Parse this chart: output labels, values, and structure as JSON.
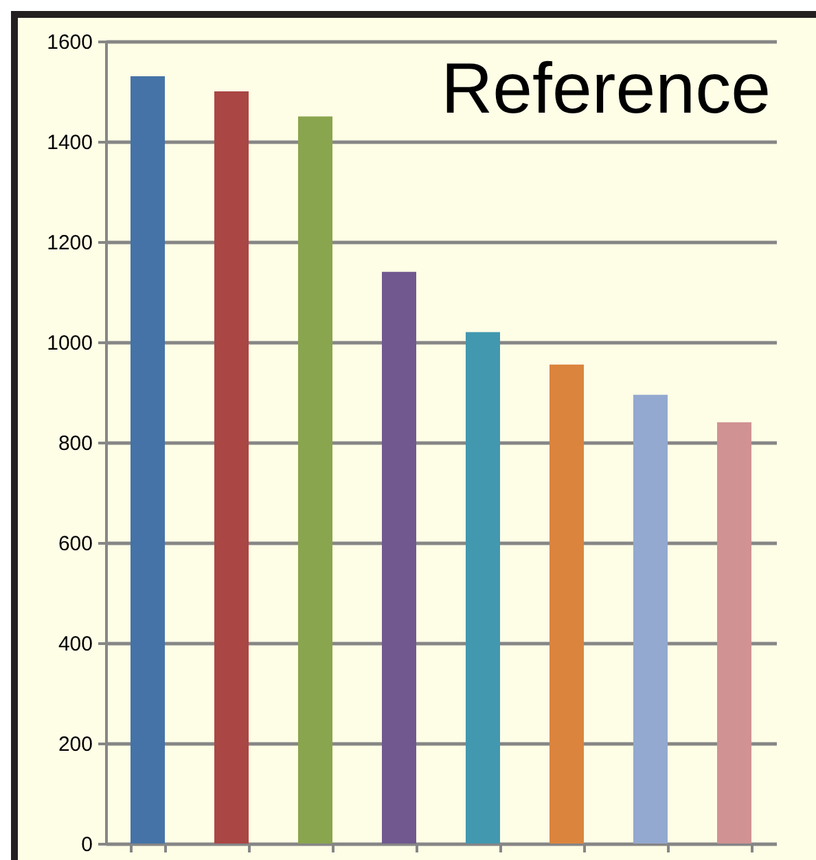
{
  "chart_data": {
    "type": "bar",
    "title": "Reference",
    "categories": [
      null,
      null,
      null,
      null,
      null,
      null,
      null,
      null
    ],
    "values": [
      1530,
      1500,
      1450,
      1140,
      1020,
      955,
      895,
      840
    ],
    "colors": [
      "#4573a7",
      "#aa4644",
      "#89a54e",
      "#71588f",
      "#4198af",
      "#db843d",
      "#93a9cf",
      "#d09293"
    ],
    "ylim": [
      0,
      1600
    ],
    "yticks": [
      0,
      200,
      400,
      600,
      800,
      1000,
      1200,
      1400,
      1600
    ],
    "grid": "y",
    "legend": false,
    "tick_labels": "y"
  }
}
